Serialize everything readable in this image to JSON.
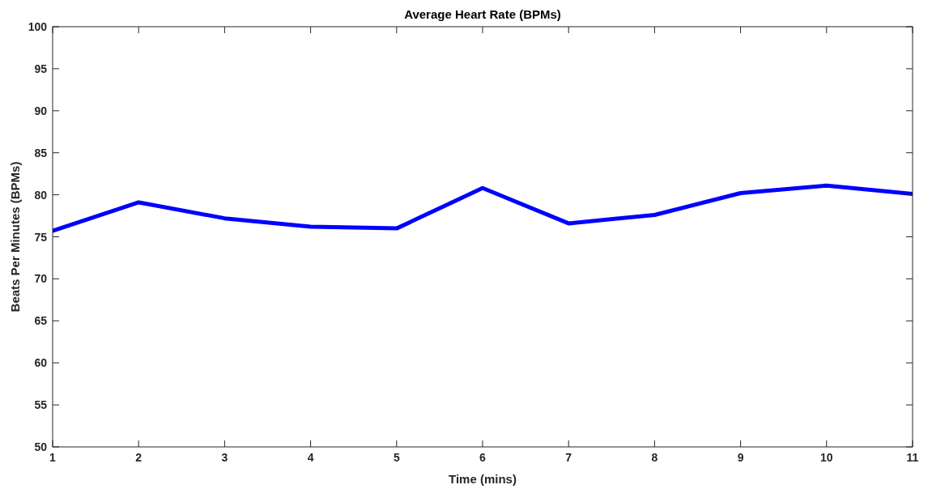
{
  "chart_data": {
    "type": "line",
    "title": "Average Heart Rate (BPMs)",
    "xlabel": "Time (mins)",
    "ylabel": "Beats Per Minutes (BPMs)",
    "x": [
      1,
      2,
      3,
      4,
      5,
      6,
      7,
      8,
      9,
      10,
      11
    ],
    "series": [
      {
        "color": "#0000ff",
        "values": [
          75.7,
          79.1,
          77.2,
          76.2,
          76.0,
          80.8,
          76.6,
          77.6,
          80.2,
          81.1,
          80.1
        ]
      }
    ],
    "xlim": [
      1,
      11
    ],
    "xticks": [
      1,
      2,
      3,
      4,
      5,
      6,
      7,
      8,
      9,
      10,
      11
    ],
    "ylim": [
      50,
      100
    ],
    "yticks": [
      50,
      55,
      60,
      65,
      70,
      75,
      80,
      85,
      90,
      95,
      100
    ],
    "grid": false,
    "marker": "none",
    "line_style": "solid"
  }
}
